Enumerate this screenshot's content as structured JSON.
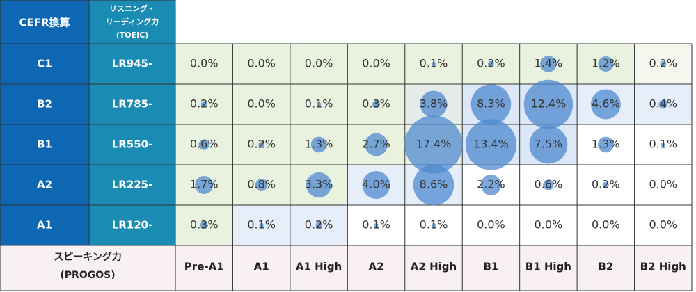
{
  "chart_data": {
    "type": "bubble_matrix",
    "row_header": "CEFR換算",
    "col_header": [
      "リスニング・",
      "リーディング力",
      "(TOEIC)"
    ],
    "rows": [
      "C1",
      "B2",
      "B1",
      "A2",
      "A1"
    ],
    "row_scores": [
      "LR945-",
      "LR785-",
      "LR550-",
      "LR225-",
      "LR120-"
    ],
    "x_label": [
      "スピーキング力",
      "(PROGOS)"
    ],
    "categories": [
      "Pre-A1",
      "A1",
      "A1 High",
      "A2",
      "A2 High",
      "B1",
      "B1 High",
      "B2",
      "B2 High"
    ],
    "values": [
      [
        0,
        0,
        0,
        0,
        0.1,
        0.2,
        1.4,
        1.2,
        0.2
      ],
      [
        0.2,
        0,
        0.1,
        0.3,
        3.8,
        8.3,
        12.4,
        4.6,
        0.4
      ],
      [
        0.6,
        0.2,
        1.3,
        2.7,
        17.4,
        13.4,
        7.5,
        1.3,
        0.1
      ],
      [
        1.7,
        0.8,
        3.3,
        4.0,
        8.6,
        2.2,
        0.6,
        0.2,
        0
      ],
      [
        0.3,
        0.1,
        0.2,
        0.1,
        0.1,
        0,
        0,
        0,
        0
      ]
    ],
    "value_labels": [
      [
        "0.0%",
        "0.0%",
        "0.0%",
        "0.0%",
        "0.1%",
        "0.2%",
        "1.4%",
        "1.2%",
        "0.2%"
      ],
      [
        "0.2%",
        "0.0%",
        "0.1%",
        "0.3%",
        "3.8%",
        "8.3%",
        "12.4%",
        "4.6%",
        "0.4%"
      ],
      [
        "0.6%",
        "0.2%",
        "1.3%",
        "2.7%",
        "17.4%",
        "13.4%",
        "7.5%",
        "1.3%",
        "0.1%"
      ],
      [
        "1.7%",
        "0.8%",
        "3.3%",
        "4.0%",
        "8.6%",
        "2.2%",
        "0.6%",
        "0.2%",
        "0.0%"
      ],
      [
        "0.3%",
        "0.1%",
        "0.2%",
        "0.1%",
        "0.1%",
        "0.0%",
        "0.0%",
        "0.0%",
        "0.0%"
      ]
    ],
    "cell_colors": [
      [
        "#e9f1df",
        "#e9f1df",
        "#e9f1df",
        "#e9f1df",
        "#e9f1df",
        "#e9f1df",
        "#e9f1df",
        "#e9f1df",
        "#f3f7ee"
      ],
      [
        "#e9f1df",
        "#e9f1df",
        "#e9f1df",
        "#e9f1df",
        "#e4ecea",
        "#dce8f7",
        "#dce8f7",
        "#e6eefa",
        "#e6eefa"
      ],
      [
        "#e9f1df",
        "#e9f1df",
        "#e9f1df",
        "#e9f1df",
        "#e9f1df",
        "#dce8f7",
        "#dce8f7",
        "#ffffff",
        "#ffffff"
      ],
      [
        "#e9f1df",
        "#e9f1df",
        "#e9f1df",
        "#e6eefa",
        "#e6eefa",
        "#ffffff",
        "#ffffff",
        "#ffffff",
        "#ffffff"
      ],
      [
        "#e9f1df",
        "#e6eefa",
        "#e6eefa",
        "#ffffff",
        "#ffffff",
        "#ffffff",
        "#ffffff",
        "#ffffff",
        "#ffffff"
      ]
    ],
    "bubble_color": "#4f8ad0"
  }
}
